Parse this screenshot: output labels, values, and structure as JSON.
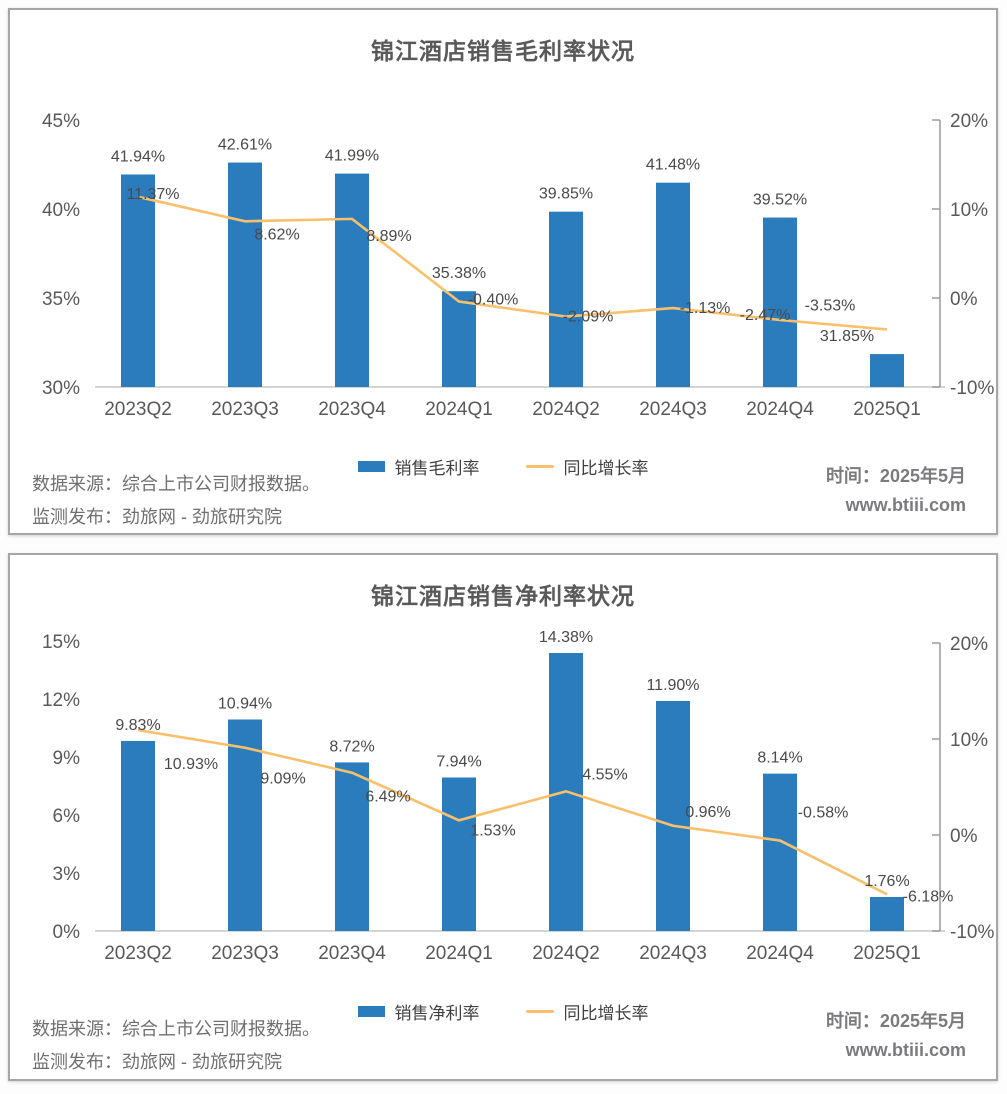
{
  "colors": {
    "bar": "#2B7CBD",
    "line": "#F9C06C",
    "title": "#595959"
  },
  "panels": [
    {
      "title": "锦江酒店销售毛利率状况",
      "footer": {
        "source": "数据来源：综合上市公司财报数据。",
        "publisher": "监测发布：劲旅网 - 劲旅研究院",
        "time": "时间：2025年5月",
        "website": "www.btiii.com"
      },
      "chart_data": {
        "type": "bar",
        "subtype": "bar+line combo, dual axis",
        "title": "锦江酒店销售毛利率状况",
        "categories": [
          "2023Q2",
          "2023Q3",
          "2023Q4",
          "2024Q1",
          "2024Q2",
          "2024Q3",
          "2024Q4",
          "2025Q1"
        ],
        "series": [
          {
            "name": "销售毛利率",
            "type": "bar",
            "axis": "left",
            "values": [
              41.94,
              42.61,
              41.99,
              35.38,
              39.85,
              41.48,
              39.52,
              31.85
            ]
          },
          {
            "name": "同比增长率",
            "type": "line",
            "axis": "right",
            "values": [
              11.37,
              8.62,
              8.89,
              -0.4,
              -2.09,
              -1.13,
              -2.47,
              -3.53
            ]
          }
        ],
        "left_axis": {
          "min": 30,
          "max": 45,
          "ticks": [
            45,
            40,
            35,
            30
          ],
          "tick_labels": [
            "45%",
            "40%",
            "35%",
            "30%"
          ]
        },
        "right_axis": {
          "min": -10,
          "max": 20,
          "ticks": [
            20,
            10,
            0,
            -10
          ],
          "tick_labels": [
            "20%",
            "10%",
            "0%",
            "-10%"
          ]
        },
        "grid": false,
        "legend_position": "bottom"
      }
    },
    {
      "title": "锦江酒店销售净利率状况",
      "footer": {
        "source": "数据来源：综合上市公司财报数据。",
        "publisher": "监测发布：劲旅网 - 劲旅研究院",
        "time": "时间：2025年5月",
        "website": "www.btiii.com"
      },
      "chart_data": {
        "type": "bar",
        "subtype": "bar+line combo, dual axis",
        "title": "锦江酒店销售净利率状况",
        "categories": [
          "2023Q2",
          "2023Q3",
          "2023Q4",
          "2024Q1",
          "2024Q2",
          "2024Q3",
          "2024Q4",
          "2025Q1"
        ],
        "series": [
          {
            "name": "销售净利率",
            "type": "bar",
            "axis": "left",
            "values": [
              9.83,
              10.94,
              8.72,
              7.94,
              14.38,
              11.9,
              8.14,
              1.76
            ]
          },
          {
            "name": "同比增长率",
            "type": "line",
            "axis": "right",
            "values": [
              10.93,
              9.09,
              6.49,
              1.53,
              4.55,
              0.96,
              -0.58,
              -6.18
            ]
          }
        ],
        "left_axis": {
          "min": 0,
          "max": 15,
          "ticks": [
            15,
            12,
            9,
            6,
            3,
            0
          ],
          "tick_labels": [
            "15%",
            "12%",
            "9%",
            "6%",
            "3%",
            "0%"
          ]
        },
        "right_axis": {
          "min": -10,
          "max": 20,
          "ticks": [
            20,
            10,
            0,
            -10
          ],
          "tick_labels": [
            "20%",
            "10%",
            "0%",
            "-10%"
          ]
        },
        "grid": false,
        "legend_position": "bottom"
      }
    }
  ]
}
